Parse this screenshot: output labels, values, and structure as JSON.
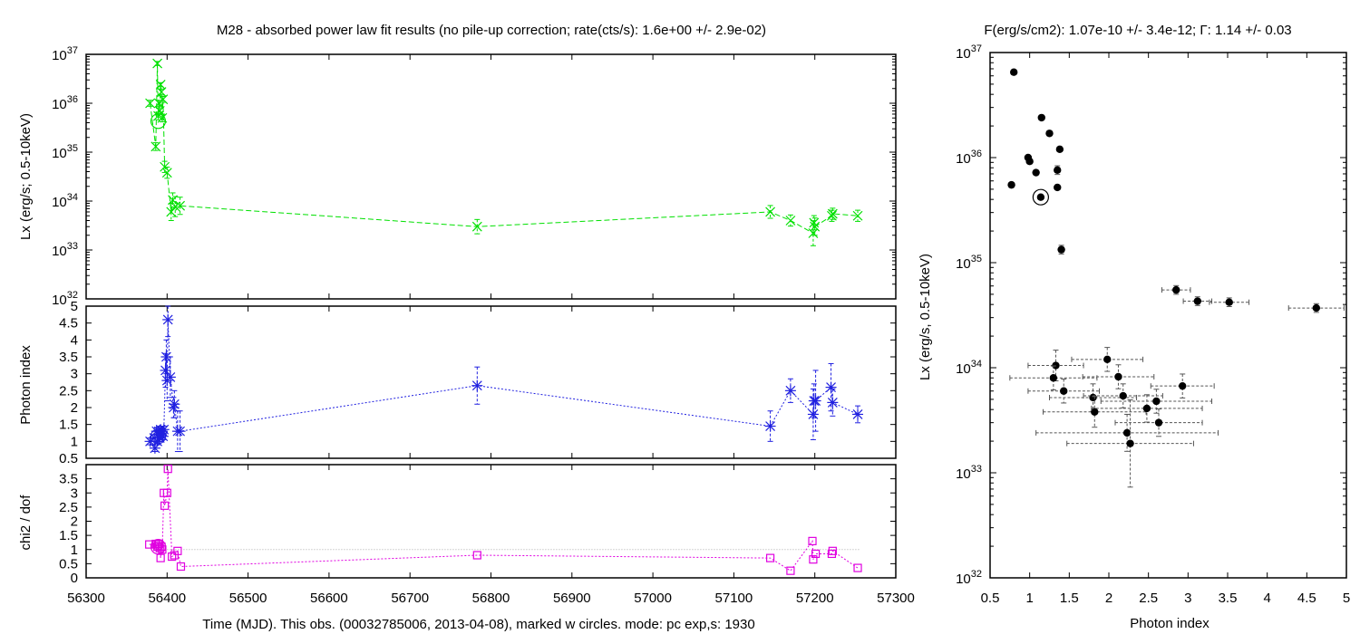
{
  "chart_data": [
    {
      "type": "line",
      "panel": "lightcurve-lx",
      "title": "M28  - absorbed power law fit results (no pile-up correction; rate(cts/s): 1.6e+00 +/- 2.9e-02)",
      "ylabel": "Lx (erg/s; 0.5-10keV)",
      "yscale": "log",
      "ylim": [
        1e+32,
        1e+37
      ],
      "xlim": [
        56300,
        57300
      ],
      "color": "#00e000",
      "marker": "x",
      "grid": false,
      "series": [
        {
          "x": [
            56379,
            56386,
            56388,
            56389,
            56390,
            56391,
            56392,
            56393,
            56394,
            56395,
            56397,
            56400,
            56405,
            56407,
            56410,
            56416,
            56783,
            57145,
            57170,
            57198,
            57199,
            57200,
            57221,
            57222,
            57253
          ],
          "y": [
            1e+36,
            1.3e+35,
            6.5e+36,
            5.5e+35,
            1e+36,
            7e+35,
            2.4e+36,
            1.7e+36,
            5e+35,
            1.2e+36,
            5e+34,
            3.8e+34,
            6e+33,
            1.05e+34,
            7.7e+33,
            8e+33,
            3e+33,
            6e+33,
            4e+33,
            2.2e+33,
            3.6e+33,
            3e+33,
            5e+33,
            5.5e+33,
            5e+33
          ],
          "yerr_factor": [
            1.15,
            1.2,
            1.1,
            1.2,
            1.15,
            1.15,
            1.1,
            1.15,
            1.2,
            1.15,
            1.3,
            1.3,
            1.5,
            1.4,
            1.6,
            1.5,
            1.4,
            1.35,
            1.3,
            1.8,
            1.4,
            1.5,
            1.3,
            1.3,
            1.3
          ]
        }
      ],
      "marked_point": {
        "x": 56389,
        "y": 4.3e+35
      }
    },
    {
      "type": "line",
      "panel": "lightcurve-photon-index",
      "ylabel": "Photon index",
      "ylim": [
        0.5,
        5
      ],
      "xlim": [
        56300,
        57300
      ],
      "color": "#2020e0",
      "marker": "*",
      "grid": false,
      "series": [
        {
          "x": [
            56379,
            56384,
            56385,
            56387,
            56388,
            56389,
            56390,
            56391,
            56392,
            56393,
            56394,
            56395,
            56396,
            56398,
            56399,
            56400,
            56401,
            56404,
            56408,
            56409,
            56413,
            56416,
            56783,
            57145,
            57170,
            57198,
            57199,
            57201,
            57220,
            57222,
            57253
          ],
          "y": [
            1.0,
            1.1,
            0.8,
            1.3,
            1.0,
            1.2,
            1.3,
            1.1,
            1.35,
            1.2,
            1.3,
            1.15,
            1.35,
            3.1,
            3.5,
            2.8,
            4.6,
            2.9,
            2.0,
            2.1,
            1.3,
            1.3,
            2.65,
            1.45,
            2.5,
            1.8,
            2.2,
            2.2,
            2.6,
            2.15,
            1.8
          ],
          "yerr": [
            0.1,
            0.1,
            0.1,
            0.1,
            0.1,
            0.1,
            0.1,
            0.1,
            0.1,
            0.1,
            0.1,
            0.1,
            0.1,
            0.5,
            0.5,
            0.6,
            0.5,
            0.6,
            0.3,
            0.4,
            0.6,
            0.6,
            0.55,
            0.45,
            0.35,
            0.75,
            0.5,
            0.9,
            0.7,
            0.4,
            0.25
          ]
        }
      ],
      "marked_point": {
        "x": 56389,
        "y": 1.15
      }
    },
    {
      "type": "line",
      "panel": "lightcurve-chi2",
      "ylabel": "chi2 / dof",
      "ylim": [
        0,
        4
      ],
      "xlim": [
        56300,
        57300
      ],
      "xlabel": "Time (MJD). This obs. (00032785006, 2013-04-08), marked w circles. mode: pc exp,s: 1930",
      "color": "#e000e0",
      "marker": "square",
      "reference_line": 1,
      "grid": false,
      "series": [
        {
          "x": [
            56378,
            56386,
            56388,
            56389,
            56390,
            56391,
            56392,
            56393,
            56394,
            56396,
            56397,
            56400,
            56401,
            56406,
            56409,
            56413,
            56417,
            56783,
            57145,
            57170,
            57197,
            57198,
            57201,
            57221,
            57222,
            57253
          ],
          "y": [
            1.18,
            1.2,
            1.1,
            1.15,
            1.2,
            1.05,
            0.7,
            1.1,
            1.0,
            3.0,
            2.55,
            3.0,
            3.85,
            0.75,
            0.8,
            0.95,
            0.4,
            0.8,
            0.7,
            0.25,
            1.3,
            0.65,
            0.85,
            0.85,
            0.95,
            0.35
          ]
        }
      ],
      "marked_point": {
        "x": 56389,
        "y": 1.1
      }
    },
    {
      "type": "scatter",
      "panel": "lx-vs-photon-index",
      "title": "F(erg/s/cm2): 1.07e-10 +/- 3.4e-12; Γ: 1.14 +/- 0.03",
      "xlabel": "Photon index",
      "ylabel": "Lx (erg/s, 0.5-10keV)",
      "yscale": "log",
      "xlim": [
        0.5,
        5
      ],
      "ylim": [
        1e+32,
        1e+37
      ],
      "color": "#000000",
      "grid": false,
      "series": [
        {
          "x": [
            0.8,
            0.77,
            0.98,
            1.0,
            1.08,
            1.15,
            1.25,
            1.38,
            1.35,
            1.35,
            1.4,
            2.85,
            3.12,
            3.52,
            4.62,
            1.33,
            1.98,
            1.3,
            2.12,
            1.43,
            1.8,
            2.18,
            2.6,
            1.82,
            2.48,
            2.63,
            2.23,
            2.27,
            2.93
          ],
          "y": [
            6.5e+36,
            5.5e+35,
            1e+36,
            9.2e+35,
            7.2e+35,
            2.4e+36,
            1.7e+36,
            1.2e+36,
            7.6e+35,
            5.2e+35,
            1.33e+35,
            5.5e+34,
            4.3e+34,
            4.2e+34,
            3.7e+34,
            1.05e+34,
            1.2e+34,
            8e+33,
            8.2e+33,
            6e+33,
            5.2e+33,
            5.4e+33,
            4.8e+33,
            3.8e+33,
            4.1e+33,
            3e+33,
            2.4e+33,
            1.9e+33,
            6.7e+33
          ],
          "xerr": [
            0.02,
            0.02,
            0.02,
            0.02,
            0.02,
            0.02,
            0.02,
            0.02,
            0.03,
            0.03,
            0.03,
            0.18,
            0.18,
            0.25,
            0.35,
            0.35,
            0.45,
            0.55,
            0.45,
            0.45,
            0.55,
            0.5,
            0.7,
            0.65,
            0.7,
            0.55,
            1.15,
            0.8,
            0.4
          ],
          "yerr_factor": [
            1.05,
            1.05,
            1.05,
            1.05,
            1.05,
            1.05,
            1.05,
            1.05,
            1.1,
            1.05,
            1.1,
            1.1,
            1.1,
            1.1,
            1.1,
            1.4,
            1.3,
            1.3,
            1.3,
            1.3,
            1.35,
            1.3,
            1.3,
            1.4,
            1.35,
            1.35,
            1.5,
            2.6,
            1.3
          ]
        }
      ],
      "marked_point": {
        "x": 1.14,
        "y": 4.2e+35
      }
    }
  ]
}
